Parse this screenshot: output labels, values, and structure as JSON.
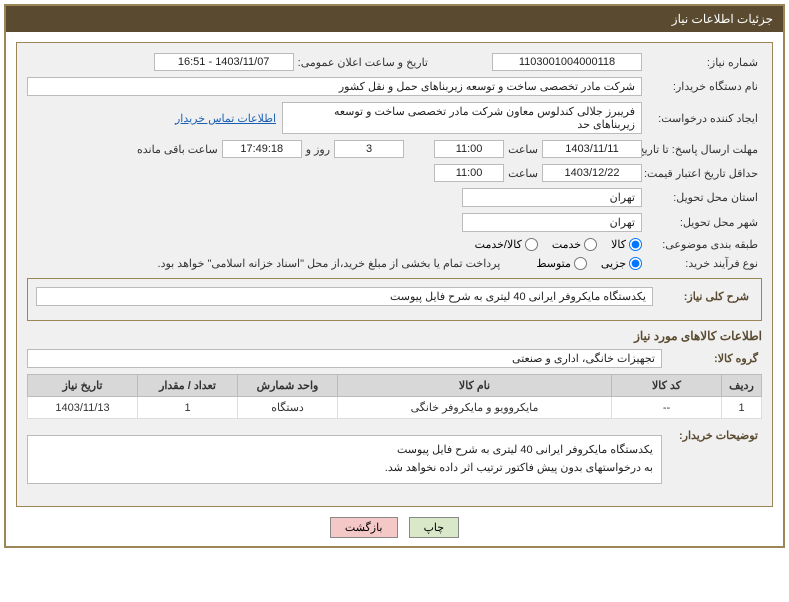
{
  "header": {
    "title": "جزئیات اطلاعات نیاز"
  },
  "fields": {
    "need_no_label": "شماره نیاز:",
    "need_no": "1103001004000118",
    "announce_label": "تاریخ و ساعت اعلان عمومی:",
    "announce_value": "1403/11/07 - 16:51",
    "buyer_org_label": "نام دستگاه خریدار:",
    "buyer_org": "شرکت مادر تخصصی ساخت و توسعه زیربناهای حمل و نقل کشور",
    "requester_label": "ایجاد کننده درخواست:",
    "requester": "فریبرز جلالی کندلوس معاون شرکت مادر تخصصی ساخت و توسعه زیربناهای حد",
    "contact_link": "اطلاعات تماس خریدار",
    "deadline_label": "مهلت ارسال پاسخ: تا تاریخ:",
    "deadline_date": "1403/11/11",
    "time_label": "ساعت",
    "deadline_time": "11:00",
    "days_and": "روز و",
    "days_value": "3",
    "countdown": "17:49:18",
    "remaining": "ساعت باقی مانده",
    "validity_label": "حداقل تاریخ اعتبار قیمت: تا تاریخ:",
    "validity_date": "1403/12/22",
    "validity_time": "11:00",
    "province_label": "استان محل تحویل:",
    "province": "تهران",
    "city_label": "شهر محل تحویل:",
    "city": "تهران",
    "category_label": "طبقه بندی موضوعی:",
    "proc_type_label": "نوع فرآیند خرید:",
    "payment_note": "پرداخت تمام یا بخشی از مبلغ خرید،از محل \"اسناد خزانه اسلامی\" خواهد بود."
  },
  "radios": {
    "category": [
      {
        "label": "کالا",
        "checked": true
      },
      {
        "label": "خدمت",
        "checked": false
      },
      {
        "label": "کالا/خدمت",
        "checked": false
      }
    ],
    "proc_type": [
      {
        "label": "جزیی",
        "checked": true
      },
      {
        "label": "متوسط",
        "checked": false
      }
    ]
  },
  "summary": {
    "label": "شرح کلی نیاز:",
    "text": "یکدستگاه مایکروفر ایرانی 40 لیتری به شرح فایل پیوست"
  },
  "goods_info_title": "اطلاعات کالاهای مورد نیاز",
  "group": {
    "label": "گروه کالا:",
    "value": "تجهیزات خانگی، اداری و صنعتی"
  },
  "table": {
    "headers": [
      "ردیف",
      "کد کالا",
      "نام کالا",
      "واحد شمارش",
      "تعداد / مقدار",
      "تاریخ نیاز"
    ],
    "rows": [
      [
        "1",
        "--",
        "مایکروویو و مایکروفر خانگی",
        "دستگاه",
        "1",
        "1403/11/13"
      ]
    ],
    "widths": [
      "40px",
      "110px",
      "auto",
      "100px",
      "100px",
      "110px"
    ]
  },
  "buyer_notes": {
    "label": "توضیحات خریدار:",
    "line1": "یکدستگاه مایکروفر ایرانی 40 لیتری به شرح فایل پیوست",
    "line2": "به درخواستهای بدون پیش فاکتور ترتیب اثر داده نخواهد شد."
  },
  "buttons": {
    "print": "چاپ",
    "back": "بازگشت"
  },
  "watermark": "AriaTender.net",
  "colors": {
    "brand": "#5a4b30",
    "border": "#9b8658",
    "panel": "#f0f0f0",
    "header_th": "#d8d8d8",
    "link": "#1a5fb4"
  }
}
